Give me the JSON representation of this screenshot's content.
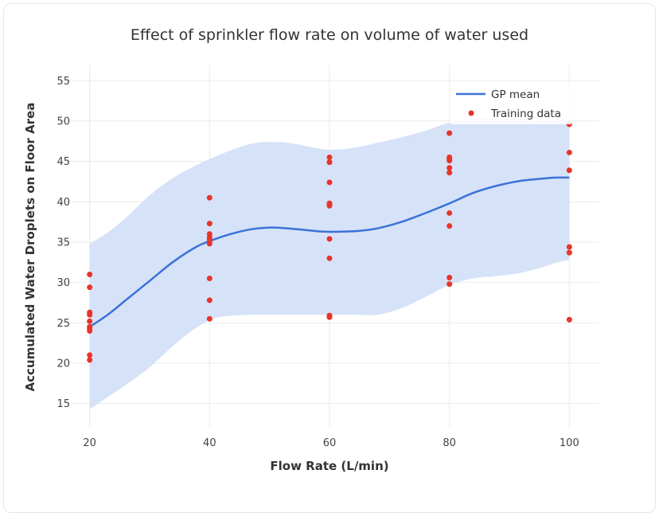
{
  "chart_data": {
    "type": "line",
    "title": "Effect of sprinkler flow rate on volume of water used",
    "xlabel": "Flow Rate (L/min)",
    "ylabel": "Accumulated Water Droplets on Floor Area",
    "xlim": [
      15,
      105
    ],
    "ylim": [
      12,
      57
    ],
    "x_ticks": [
      20,
      40,
      60,
      80,
      100
    ],
    "y_ticks": [
      15,
      20,
      25,
      30,
      35,
      40,
      45,
      50,
      55
    ],
    "grid": true,
    "legend_position": "top-right",
    "colors": {
      "mean": "#3b72d9",
      "band": "#d6e2f7",
      "points": "#e8342a"
    },
    "series": [
      {
        "name": "GP mean",
        "kind": "line",
        "x": [
          20,
          23,
          26,
          30,
          34,
          38,
          41,
          44,
          47,
          50,
          53,
          56,
          59,
          62,
          65,
          68,
          72,
          76,
          80,
          84,
          88,
          92,
          96,
          98,
          100
        ],
        "y": [
          24.5,
          26.0,
          27.8,
          30.2,
          32.6,
          34.5,
          35.4,
          36.1,
          36.6,
          36.8,
          36.7,
          36.5,
          36.3,
          36.3,
          36.4,
          36.7,
          37.5,
          38.6,
          39.8,
          41.1,
          42.0,
          42.6,
          42.9,
          43.0,
          43.0
        ],
        "upper": [
          34.8,
          36.2,
          38.0,
          40.8,
          43.0,
          44.6,
          45.6,
          46.5,
          47.2,
          47.4,
          47.3,
          46.9,
          46.5,
          46.5,
          46.8,
          47.3,
          48.0,
          48.8,
          49.8,
          50.3,
          50.3,
          50.3,
          50.3,
          50.3,
          50.3
        ],
        "lower": [
          14.3,
          15.8,
          17.3,
          19.5,
          22.2,
          24.5,
          25.6,
          25.9,
          26.0,
          26.0,
          26.0,
          26.0,
          26.0,
          26.0,
          26.0,
          26.0,
          26.8,
          28.2,
          29.7,
          30.5,
          30.8,
          31.2,
          32.0,
          32.5,
          32.8
        ]
      },
      {
        "name": "Training data",
        "kind": "scatter",
        "x": [
          20,
          20,
          20,
          20,
          20,
          20,
          20,
          20,
          20,
          20,
          40,
          40,
          40,
          40,
          40,
          40,
          40,
          40,
          40,
          40,
          60,
          60,
          60,
          60,
          60,
          60,
          60,
          60,
          60,
          60,
          80,
          80,
          80,
          80,
          80,
          80,
          80,
          80,
          80,
          80,
          100,
          100,
          100,
          100,
          100,
          100
        ],
        "y": [
          31.0,
          29.4,
          26.3,
          26.0,
          25.2,
          24.5,
          24.0,
          21.0,
          20.4,
          24.3,
          40.5,
          37.3,
          36.0,
          35.6,
          35.3,
          34.8,
          30.5,
          27.8,
          25.5,
          35.0,
          45.5,
          44.9,
          42.4,
          39.8,
          39.5,
          35.4,
          33.0,
          25.9,
          25.7,
          39.7,
          48.5,
          45.5,
          45.1,
          44.2,
          43.6,
          38.6,
          37.0,
          30.6,
          29.8,
          45.3,
          49.6,
          46.1,
          43.9,
          34.4,
          33.7,
          25.4
        ]
      }
    ]
  }
}
